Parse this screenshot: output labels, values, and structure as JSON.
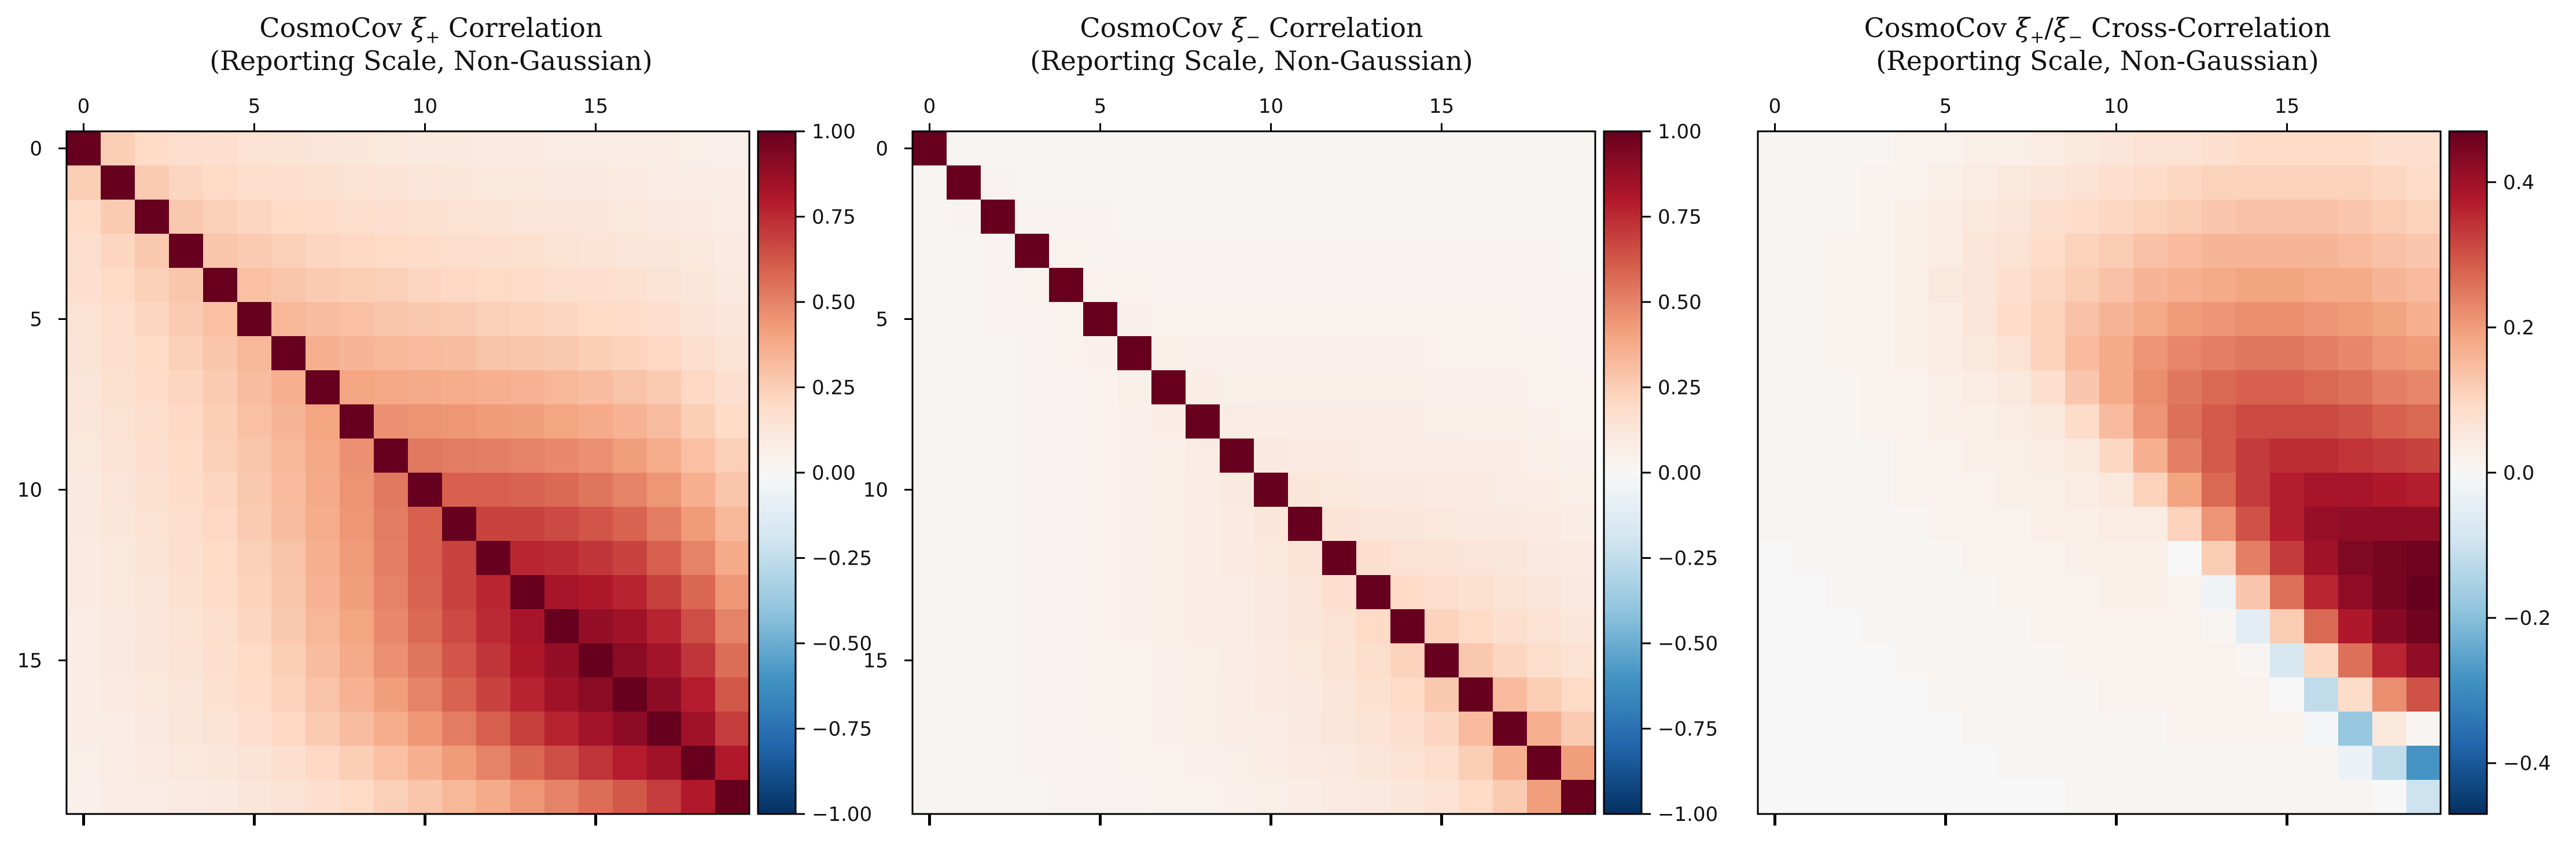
{
  "chart_data": [
    {
      "type": "heatmap",
      "title_line1": "CosmoCov ξ+ Correlation",
      "title_main": "CosmoCov ",
      "title_sym": "ξ",
      "title_sub": "+",
      "title_rest": " Correlation",
      "title_line2": "(Reporting Scale, Non-Gaussian)",
      "n": 20,
      "x_ticks": [
        0,
        5,
        10,
        15
      ],
      "y_ticks": [
        0,
        5,
        10,
        15
      ],
      "colorbar": {
        "min": -1.0,
        "max": 1.0,
        "ticks": [
          1.0,
          0.75,
          0.5,
          0.25,
          0.0,
          -0.25,
          -0.5,
          -0.75,
          -1.0
        ],
        "tick_labels": [
          "1.00",
          "0.75",
          "0.50",
          "0.25",
          "0.00",
          "−0.25",
          "−0.50",
          "−0.75",
          "−1.00"
        ]
      },
      "cmap": "RdBu_r",
      "matrix_rows": [
        "1.00 0.25 0.20 0.18 0.17 0.15 0.14 0.13 0.12 0.11 0.10 0.10 0.09 0.09 0.08 0.08 0.07 0.07 0.06 0.05",
        "0.25 1.00 0.26 0.22 0.20 0.18 0.17 0.16 0.15 0.14 0.13 0.12 0.11 0.11 0.10 0.10 0.09 0.08 0.08 0.07",
        "0.20 0.26 1.00 0.27 0.24 0.22 0.20 0.19 0.18 0.17 0.16 0.15 0.14 0.13 0.13 0.12 0.11 0.10 0.09 0.08",
        "0.18 0.22 0.27 1.00 0.28 0.26 0.24 0.22 0.21 0.20 0.19 0.18 0.17 0.16 0.15 0.14 0.13 0.12 0.11 0.09",
        "0.17 0.20 0.24 0.28 1.00 0.30 0.28 0.26 0.25 0.24 0.22 0.21 0.20 0.19 0.18 0.17 0.16 0.14 0.12 0.10",
        "0.15 0.18 0.22 0.26 0.30 1.00 0.33 0.31 0.30 0.28 0.27 0.26 0.24 0.23 0.22 0.20 0.19 0.17 0.14 0.12",
        "0.14 0.17 0.20 0.24 0.28 0.33 1.00 0.36 0.34 0.33 0.32 0.31 0.29 0.28 0.27 0.25 0.23 0.21 0.17 0.14",
        "0.13 0.16 0.19 0.22 0.26 0.31 0.36 1.00 0.40 0.39 0.38 0.37 0.36 0.35 0.33 0.31 0.29 0.26 0.21 0.17",
        "0.12 0.15 0.18 0.21 0.25 0.30 0.34 0.40 1.00 0.46 0.45 0.44 0.43 0.42 0.40 0.38 0.35 0.31 0.25 0.20",
        "0.11 0.14 0.17 0.20 0.24 0.28 0.33 0.39 0.46 1.00 0.53 0.52 0.51 0.50 0.48 0.46 0.42 0.37 0.30 0.24",
        "0.10 0.13 0.16 0.19 0.22 0.27 0.32 0.38 0.45 0.53 1.00 0.60 0.60 0.59 0.57 0.54 0.50 0.44 0.36 0.28",
        "0.10 0.12 0.15 0.18 0.21 0.26 0.31 0.37 0.44 0.52 0.60 1.00 0.68 0.68 0.66 0.63 0.59 0.52 0.43 0.33",
        "0.09 0.11 0.14 0.17 0.20 0.24 0.29 0.36 0.43 0.51 0.60 0.68 1.00 0.76 0.75 0.72 0.68 0.60 0.50 0.38",
        "0.09 0.11 0.13 0.16 0.19 0.23 0.28 0.35 0.42 0.50 0.59 0.68 0.76 1.00 0.83 0.81 0.77 0.69 0.58 0.44",
        "0.08 0.10 0.13 0.15 0.18 0.22 0.27 0.33 0.40 0.48 0.57 0.66 0.75 0.83 1.00 0.88 0.85 0.77 0.65 0.50",
        "0.08 0.10 0.12 0.14 0.17 0.20 0.25 0.31 0.38 0.46 0.54 0.63 0.72 0.81 0.88 1.00 0.91 0.84 0.72 0.56",
        "0.07 0.09 0.11 0.13 0.16 0.19 0.23 0.29 0.35 0.42 0.50 0.59 0.68 0.77 0.85 0.91 1.00 0.90 0.79 0.62",
        "0.07 0.08 0.10 0.12 0.14 0.17 0.21 0.26 0.31 0.37 0.44 0.52 0.60 0.69 0.77 0.84 0.90 1.00 0.85 0.70",
        "0.06 0.08 0.09 0.11 0.12 0.14 0.17 0.21 0.25 0.30 0.36 0.43 0.50 0.58 0.65 0.72 0.79 0.85 1.00 0.80",
        "0.05 0.07 0.08 0.09 0.10 0.12 0.14 0.17 0.20 0.24 0.28 0.33 0.38 0.44 0.50 0.56 0.62 0.70 0.80 1.00"
      ]
    },
    {
      "type": "heatmap",
      "title_line1": "CosmoCov ξ− Correlation",
      "title_main": "CosmoCov ",
      "title_sym": "ξ",
      "title_sub": "−",
      "title_rest": " Correlation",
      "title_line2": "(Reporting Scale, Non-Gaussian)",
      "n": 20,
      "x_ticks": [
        0,
        5,
        10,
        15
      ],
      "y_ticks": [
        0,
        5,
        10,
        15
      ],
      "colorbar": {
        "min": -1.0,
        "max": 1.0,
        "ticks": [
          1.0,
          0.75,
          0.5,
          0.25,
          0.0,
          -0.25,
          -0.5,
          -0.75,
          -1.0
        ],
        "tick_labels": [
          "1.00",
          "0.75",
          "0.50",
          "0.25",
          "0.00",
          "−0.25",
          "−0.50",
          "−0.75",
          "−1.00"
        ]
      },
      "cmap": "RdBu_r",
      "matrix_rows": [
        "1.00 0.02 0.02 0.02 0.02 0.02 0.02 0.02 0.02 0.02 0.02 0.02 0.02 0.02 0.02 0.02 0.02 0.02 0.02 0.02",
        "0.02 1.00 0.03 0.02 0.02 0.02 0.02 0.02 0.02 0.02 0.02 0.02 0.02 0.02 0.02 0.02 0.02 0.02 0.02 0.02",
        "0.02 0.03 1.00 0.03 0.03 0.03 0.02 0.02 0.02 0.02 0.02 0.02 0.02 0.02 0.02 0.02 0.02 0.02 0.02 0.02",
        "0.02 0.02 0.03 1.00 0.04 0.03 0.03 0.03 0.03 0.03 0.03 0.03 0.03 0.03 0.03 0.03 0.03 0.03 0.03 0.02",
        "0.02 0.02 0.03 0.04 1.00 0.04 0.04 0.03 0.03 0.03 0.03 0.03 0.03 0.03 0.03 0.03 0.03 0.03 0.03 0.03",
        "0.02 0.02 0.03 0.03 0.04 1.00 0.05 0.04 0.04 0.04 0.04 0.04 0.04 0.04 0.04 0.04 0.04 0.04 0.03 0.03",
        "0.02 0.02 0.02 0.03 0.04 0.05 1.00 0.06 0.05 0.05 0.05 0.05 0.05 0.05 0.05 0.04 0.04 0.04 0.04 0.03",
        "0.02 0.02 0.02 0.03 0.03 0.04 0.06 1.00 0.07 0.06 0.06 0.06 0.06 0.06 0.06 0.05 0.05 0.05 0.04 0.04",
        "0.02 0.02 0.02 0.03 0.03 0.04 0.05 0.07 1.00 0.08 0.07 0.07 0.07 0.07 0.07 0.06 0.06 0.06 0.05 0.04",
        "0.02 0.02 0.02 0.03 0.03 0.04 0.05 0.06 0.08 1.00 0.10 0.09 0.09 0.08 0.08 0.08 0.07 0.07 0.06 0.05",
        "0.02 0.02 0.02 0.03 0.03 0.04 0.05 0.06 0.07 0.10 1.00 0.12 0.11 0.10 0.10 0.09 0.09 0.08 0.07 0.06",
        "0.02 0.02 0.02 0.03 0.03 0.04 0.05 0.06 0.07 0.09 0.12 1.00 0.14 0.13 0.12 0.11 0.10 0.10 0.09 0.07",
        "0.02 0.02 0.02 0.03 0.03 0.04 0.05 0.06 0.07 0.09 0.11 0.14 1.00 0.17 0.15 0.14 0.13 0.12 0.10 0.09",
        "0.02 0.02 0.02 0.03 0.03 0.04 0.05 0.06 0.07 0.08 0.10 0.13 0.17 1.00 0.20 0.18 0.16 0.14 0.12 0.10",
        "0.02 0.02 0.02 0.03 0.03 0.04 0.05 0.06 0.07 0.08 0.10 0.12 0.15 0.20 1.00 0.23 0.20 0.17 0.15 0.12",
        "0.02 0.02 0.02 0.03 0.03 0.04 0.04 0.05 0.06 0.08 0.09 0.11 0.14 0.18 0.23 1.00 0.27 0.22 0.18 0.15",
        "0.02 0.02 0.02 0.03 0.03 0.04 0.04 0.05 0.06 0.07 0.09 0.10 0.13 0.16 0.20 0.27 1.00 0.32 0.25 0.20",
        "0.02 0.02 0.02 0.03 0.03 0.04 0.04 0.05 0.06 0.07 0.08 0.10 0.12 0.14 0.17 0.22 0.32 1.00 0.36 0.26",
        "0.02 0.02 0.02 0.03 0.03 0.03 0.04 0.04 0.05 0.06 0.07 0.09 0.10 0.12 0.15 0.18 0.25 0.36 1.00 0.42",
        "0.02 0.02 0.02 0.02 0.03 0.03 0.03 0.04 0.04 0.05 0.06 0.07 0.09 0.10 0.12 0.15 0.20 0.26 0.42 1.00"
      ]
    },
    {
      "type": "heatmap",
      "title_line1": "CosmoCov ξ+/ξ− Cross-Correlation",
      "title_main": "CosmoCov ",
      "title_sym": "ξ",
      "title_sub": "+",
      "title_slash": "/",
      "title_sym2": "ξ",
      "title_sub2": "−",
      "title_rest": " Cross-Correlation",
      "title_line2": "(Reporting Scale, Non-Gaussian)",
      "n": 20,
      "x_ticks": [
        0,
        5,
        10,
        15
      ],
      "y_ticks": [],
      "colorbar": {
        "min": -0.47,
        "max": 0.47,
        "ticks": [
          0.4,
          0.2,
          0.0,
          -0.2,
          -0.4
        ],
        "tick_labels": [
          "0.4",
          "0.2",
          "0.0",
          "−0.2",
          "−0.4"
        ]
      },
      "cmap": "RdBu_r",
      "matrix_rows": [
        "0.01 0.01 0.01 0.01 0.02 0.02 0.03 0.03 0.04 0.05 0.06 0.07 0.07 0.08 0.09 0.09 0.09 0.09 0.08 0.08",
        "0.01 0.01 0.01 0.02 0.02 0.03 0.04 0.05 0.06 0.07 0.08 0.09 0.10 0.11 0.11 0.11 0.11 0.11 0.10 0.09",
        "0.01 0.01 0.01 0.02 0.03 0.04 0.05 0.06 0.08 0.09 0.10 0.11 0.12 0.13 0.14 0.14 0.14 0.13 0.12 0.11",
        "0.01 0.01 0.02 0.02 0.03 0.04 0.06 0.07 0.09 0.11 0.12 0.14 0.15 0.16 0.16 0.16 0.16 0.15 0.14 0.13",
        "0.01 0.01 0.02 0.02 0.03 0.05 0.06 0.08 0.10 0.12 0.14 0.16 0.17 0.18 0.19 0.19 0.18 0.18 0.16 0.15",
        "0.01 0.01 0.02 0.02 0.03 0.04 0.06 0.09 0.11 0.14 0.16 0.18 0.20 0.21 0.22 0.22 0.21 0.20 0.19 0.17",
        "0.01 0.01 0.02 0.02 0.03 0.04 0.05 0.07 0.11 0.15 0.18 0.21 0.23 0.24 0.25 0.25 0.24 0.23 0.21 0.20",
        "0.01 0.01 0.01 0.02 0.02 0.03 0.04 0.05 0.08 0.13 0.18 0.22 0.25 0.27 0.28 0.28 0.27 0.26 0.24 0.23",
        "0.01 0.01 0.01 0.02 0.02 0.03 0.03 0.04 0.05 0.09 0.15 0.21 0.26 0.29 0.31 0.31 0.31 0.30 0.28 0.27",
        "0.01 0.01 0.01 0.01 0.02 0.02 0.03 0.03 0.04 0.05 0.10 0.17 0.24 0.29 0.33 0.35 0.35 0.34 0.33 0.32",
        "0.01 0.01 0.01 0.01 0.02 0.02 0.02 0.03 0.03 0.04 0.05 0.11 0.19 0.27 0.33 0.37 0.39 0.39 0.38 0.37",
        "0.01 0.01 0.01 0.01 0.01 0.02 0.02 0.02 0.03 0.03 0.04 0.04 0.11 0.21 0.30 0.37 0.41 0.42 0.42 0.42",
        "0.00 0.01 0.01 0.01 0.01 0.01 0.02 0.02 0.02 0.03 0.03 0.03 0.00 0.12 0.24 0.33 0.40 0.44 0.45 0.46",
        "0.00 0.00 0.01 0.01 0.01 0.01 0.01 0.02 0.02 0.02 0.03 0.03 0.02 -0.02 0.13 0.26 0.36 0.42 0.45 0.47",
        "0.00 0.00 0.00 0.01 0.01 0.01 0.01 0.01 0.02 0.02 0.02 0.02 0.02 0.01 -0.05 0.12 0.27 0.38 0.43 0.46",
        "0.00 0.00 0.00 0.00 0.01 0.01 0.01 0.01 0.01 0.02 0.02 0.02 0.02 0.02 0.01 -0.08 0.10 0.26 0.36 0.42",
        "0.00 0.00 0.00 0.00 0.00 0.01 0.01 0.01 0.01 0.01 0.02 0.02 0.02 0.02 0.02 0.00 -0.12 0.09 0.22 0.30",
        "0.00 0.00 0.00 0.00 0.00 0.00 0.01 0.01 0.01 0.01 0.01 0.01 0.02 0.02 0.02 0.02 -0.01 -0.18 0.05 0.01",
        "0.00 0.00 0.00 0.00 0.00 0.00 0.00 0.01 0.01 0.01 0.01 0.01 0.01 0.01 0.01 0.01 0.01 -0.03 -0.12 -0.28",
        "0.00 0.00 0.00 0.00 0.00 0.00 0.00 0.00 0.00 0.01 0.01 0.01 0.01 0.01 0.01 0.01 0.01 0.01 0.00 -0.10"
      ]
    }
  ]
}
